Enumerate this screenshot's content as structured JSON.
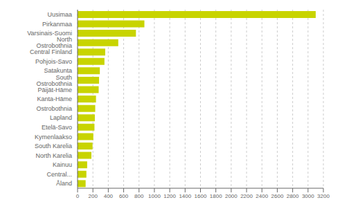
{
  "chart_data": {
    "type": "bar",
    "orientation": "horizontal",
    "categories": [
      "Uusimaa",
      "Pirkanmaa",
      "Varsinais-Suomi",
      "North Ostrobothnia",
      "Central Finland",
      "Pohjois-Savo",
      "Satakunta",
      "South Ostrobothnia",
      "Päijät-Häme",
      "Kanta-Häme",
      "Ostrobothnia",
      "Lapland",
      "Etelä-Savo",
      "Kymenlaakso",
      "South Karelia",
      "North Karelia",
      "Kainuu",
      "Central...",
      "Åland"
    ],
    "values": [
      3100,
      870,
      760,
      530,
      360,
      350,
      290,
      280,
      275,
      240,
      230,
      225,
      220,
      205,
      195,
      180,
      125,
      115,
      105
    ],
    "color": "#c8d400",
    "xlim": [
      0,
      3200
    ],
    "xticks": [
      0,
      200,
      400,
      600,
      800,
      1000,
      1200,
      1400,
      1600,
      1800,
      2000,
      2200,
      2400,
      2600,
      2800,
      3000,
      3200
    ],
    "grid": true
  }
}
